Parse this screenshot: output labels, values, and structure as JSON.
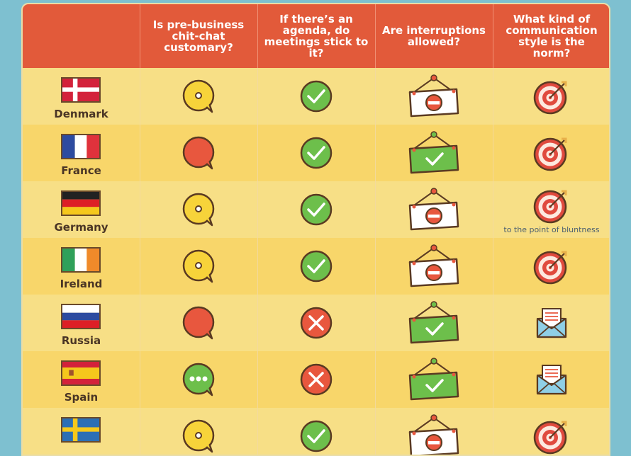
{
  "headers": [
    "Is pre-business chit-chat customary?",
    "If there’s an agenda, do meetings stick to it?",
    "Are interruptions allowed?",
    "What kind of communication style is the norm?"
  ],
  "rows": [
    {
      "country": "Denmark",
      "flag": "denmark",
      "chitchat": "bubble-dot",
      "agenda": "check",
      "interrupt": "no-sign",
      "style": "target"
    },
    {
      "country": "France",
      "flag": "france",
      "chitchat": "bubble-red",
      "agenda": "check",
      "interrupt": "yes-sign",
      "style": "target"
    },
    {
      "country": "Germany",
      "flag": "germany",
      "chitchat": "bubble-dot",
      "agenda": "check",
      "interrupt": "no-sign",
      "style": "target",
      "note": "to the point of bluntness"
    },
    {
      "country": "Ireland",
      "flag": "ireland",
      "chitchat": "bubble-dot",
      "agenda": "check",
      "interrupt": "no-sign",
      "style": "target"
    },
    {
      "country": "Russia",
      "flag": "russia",
      "chitchat": "bubble-red",
      "agenda": "cross",
      "interrupt": "yes-sign",
      "style": "envelope"
    },
    {
      "country": "Spain",
      "flag": "spain",
      "chitchat": "bubble-ellipsis",
      "agenda": "cross",
      "interrupt": "yes-sign",
      "style": "envelope"
    },
    {
      "country": "",
      "flag": "sweden",
      "chitchat": "bubble-dot",
      "agenda": "check",
      "interrupt": "no-sign",
      "style": "target"
    }
  ],
  "colors": {
    "header": "#e25a3a",
    "row_a": "#f7df86",
    "row_b": "#f8d66a",
    "bubble_yellow": "#f7d33a",
    "bubble_red": "#e8573e",
    "bubble_green": "#6dbf4b",
    "check_green": "#6dbf4b",
    "cross_red": "#e8573e",
    "sign_white": "#ffffff",
    "sign_green": "#6dbf4b",
    "target_red": "#e04a3e",
    "envelope_blue": "#8fcfe6",
    "background": "#7ec0d0"
  }
}
